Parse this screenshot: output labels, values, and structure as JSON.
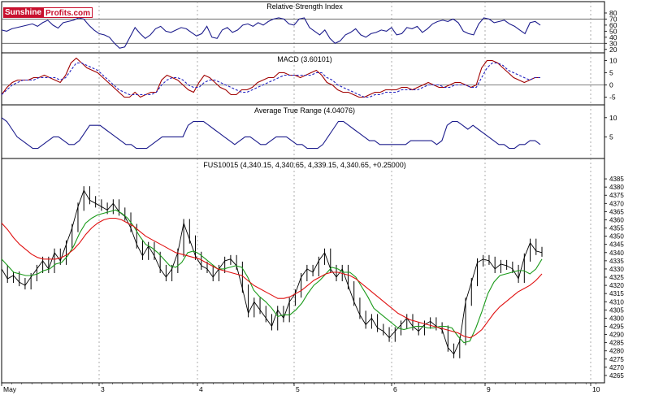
{
  "brand": {
    "part1": "Sunshine",
    "part2": "Profits.com"
  },
  "colors": {
    "price": "#000000",
    "ma_fast": "#1a9a1a",
    "ma_slow": "#e01010",
    "macd": "#a00000",
    "signal": "#2020c0",
    "rsi": "#1c1c8c",
    "atr": "#1c1c8c",
    "grid": "#9a9a9a",
    "axis": "#000000"
  },
  "chart_data": [
    {
      "type": "line",
      "title": "Relative Strength Index",
      "yticks": [
        80,
        70,
        60,
        50,
        40,
        30,
        20
      ],
      "ylim": [
        17,
        84
      ],
      "ref_lines": [
        70,
        30
      ],
      "series": [
        {
          "values": [
            52,
            50,
            54,
            56,
            58,
            60,
            62,
            58,
            64,
            68,
            60,
            55,
            64,
            66,
            68,
            72,
            70,
            60,
            52,
            46,
            44,
            40,
            30,
            22,
            24,
            40,
            56,
            46,
            38,
            44,
            54,
            58,
            50,
            48,
            52,
            56,
            54,
            48,
            42,
            46,
            58,
            40,
            38,
            52,
            56,
            48,
            52,
            60,
            62,
            58,
            64,
            60,
            66,
            70,
            72,
            70,
            62,
            60,
            70,
            72,
            56,
            50,
            44,
            52,
            38,
            30,
            34,
            44,
            48,
            54,
            44,
            40,
            46,
            48,
            52,
            50,
            56,
            44,
            46,
            56,
            54,
            58,
            48,
            54,
            62,
            66,
            68,
            66,
            70,
            64,
            50,
            46,
            44,
            62,
            72,
            70,
            64,
            66,
            68,
            62,
            58,
            52,
            46,
            64,
            66,
            60
          ]
        }
      ]
    },
    {
      "type": "line",
      "title": "MACD (3.60101)",
      "yticks": [
        10,
        5,
        0,
        -5
      ],
      "ylim": [
        -6.5,
        11.5
      ],
      "zero_line": 0,
      "series": [
        {
          "values": [
            -4,
            -1,
            1,
            2,
            2,
            2,
            3,
            3,
            4,
            3,
            2,
            1,
            4,
            9,
            11,
            9,
            7,
            6,
            5,
            3,
            1,
            -1,
            -3,
            -5,
            -5,
            -3,
            -5,
            -4,
            -3,
            -3,
            2,
            4,
            3,
            2,
            0,
            -2,
            -3,
            1,
            4,
            3,
            1,
            -1,
            -2,
            -4,
            -4,
            -2,
            -2,
            -1,
            1,
            2,
            3,
            3,
            5,
            5,
            4,
            4,
            3,
            4,
            5,
            6,
            4,
            1,
            0,
            -2,
            -3,
            -3,
            -4,
            -5,
            -5,
            -4,
            -3,
            -3,
            -2,
            -2,
            -2,
            -1,
            -1,
            -2,
            -1,
            0,
            1,
            0,
            -1,
            -1,
            0,
            1,
            1,
            0,
            -1,
            0,
            7,
            10,
            10,
            9,
            7,
            5,
            3,
            2,
            1,
            2,
            3,
            3
          ]
        },
        {
          "values": [
            -4,
            -2,
            0,
            1,
            2,
            2,
            2,
            3,
            3,
            3,
            3,
            2,
            3,
            6,
            9,
            9,
            8,
            7,
            6,
            4,
            2,
            0,
            -2,
            -3,
            -4,
            -4,
            -4,
            -4,
            -4,
            -3,
            0,
            2,
            3,
            3,
            2,
            0,
            -1,
            -1,
            1,
            2,
            2,
            1,
            0,
            -1,
            -2,
            -3,
            -3,
            -2,
            -1,
            0,
            1,
            2,
            3,
            4,
            4,
            4,
            4,
            4,
            4,
            5,
            5,
            3,
            2,
            0,
            -1,
            -2,
            -3,
            -4,
            -5,
            -5,
            -4,
            -4,
            -3,
            -3,
            -3,
            -2,
            -2,
            -2,
            -2,
            -1,
            0,
            0,
            0,
            -1,
            -1,
            0,
            0,
            0,
            -1,
            -1,
            3,
            7,
            9,
            9,
            8,
            6,
            5,
            4,
            3,
            2,
            3,
            3
          ]
        }
      ]
    },
    {
      "type": "line",
      "title": "Average True Range (4.04076)",
      "yticks": [
        10,
        5
      ],
      "ylim": [
        0,
        12.5
      ],
      "series": [
        {
          "values": [
            10,
            9,
            7,
            5,
            4,
            3,
            2,
            2,
            3,
            4,
            5,
            5,
            4,
            3,
            3,
            4,
            6,
            8,
            8,
            8,
            7,
            6,
            5,
            4,
            3,
            3,
            2,
            2,
            2,
            3,
            4,
            5,
            5,
            5,
            5,
            5,
            8,
            9,
            9,
            9,
            8,
            7,
            6,
            5,
            4,
            3,
            4,
            5,
            5,
            4,
            3,
            3,
            4,
            5,
            5,
            5,
            4,
            3,
            3,
            2,
            2,
            2,
            3,
            5,
            7,
            9,
            9,
            8,
            7,
            6,
            5,
            4,
            4,
            3,
            3,
            3,
            3,
            3,
            3,
            4,
            4,
            4,
            4,
            4,
            3,
            4,
            8,
            9,
            9,
            8,
            7,
            8,
            7,
            6,
            5,
            4,
            3,
            3,
            2,
            2,
            3,
            3,
            4,
            4,
            3
          ]
        }
      ]
    },
    {
      "type": "line",
      "title": "FUS10015 (4,340.15, 4,340.65, 4,339.15, 4,340.65, +0.25000)",
      "yticks": [
        4385,
        4380,
        4375,
        4370,
        4365,
        4360,
        4355,
        4350,
        4345,
        4340,
        4335,
        4330,
        4325,
        4320,
        4315,
        4310,
        4305,
        4300,
        4295,
        4290,
        4285,
        4280,
        4275,
        4270,
        4265
      ],
      "ylim": [
        4262,
        4390
      ],
      "xticks": [
        "May",
        "3",
        "4",
        "5",
        "6",
        "9",
        "10"
      ],
      "series": [
        {
          "values": [
            4330,
            4324,
            4326,
            4322,
            4320,
            4325,
            4330,
            4335,
            4330,
            4340,
            4335,
            4345,
            4355,
            4368,
            4378,
            4372,
            4370,
            4368,
            4366,
            4370,
            4365,
            4362,
            4355,
            4345,
            4338,
            4344,
            4338,
            4330,
            4325,
            4330,
            4340,
            4358,
            4348,
            4338,
            4332,
            4330,
            4325,
            4330,
            4335,
            4336,
            4332,
            4318,
            4303,
            4310,
            4305,
            4300,
            4295,
            4305,
            4300,
            4310,
            4315,
            4325,
            4330,
            4328,
            4335,
            4340,
            4330,
            4325,
            4330,
            4320,
            4310,
            4302,
            4296,
            4300,
            4294,
            4292,
            4288,
            4292,
            4296,
            4300,
            4295,
            4292,
            4296,
            4298,
            4295,
            4293,
            4282,
            4278,
            4286,
            4310,
            4322,
            4334,
            4336,
            4335,
            4330,
            4333,
            4332,
            4330,
            4324,
            4337,
            4346,
            4341,
            4340
          ]
        },
        {
          "values": [
            4336,
            4332,
            4328,
            4327,
            4326,
            4326,
            4327,
            4329,
            4330,
            4333,
            4334,
            4338,
            4344,
            4352,
            4358,
            4361,
            4363,
            4364,
            4365,
            4366,
            4364,
            4361,
            4356,
            4350,
            4345,
            4343,
            4340,
            4336,
            4332,
            4331,
            4334,
            4340,
            4341,
            4339,
            4336,
            4333,
            4330,
            4330,
            4331,
            4332,
            4331,
            4325,
            4317,
            4313,
            4310,
            4306,
            4301,
            4302,
            4302,
            4305,
            4309,
            4315,
            4320,
            4323,
            4327,
            4331,
            4330,
            4328,
            4328,
            4325,
            4319,
            4313,
            4306,
            4303,
            4300,
            4297,
            4294,
            4293,
            4294,
            4295,
            4295,
            4294,
            4294,
            4295,
            4295,
            4294,
            4289,
            4285,
            4286,
            4294,
            4304,
            4315,
            4322,
            4326,
            4327,
            4328,
            4329,
            4329,
            4327,
            4330,
            4336
          ]
        },
        {
          "values": [
            4358,
            4354,
            4349,
            4345,
            4342,
            4339,
            4337,
            4336,
            4336,
            4336,
            4337,
            4339,
            4342,
            4346,
            4351,
            4355,
            4358,
            4360,
            4361,
            4361,
            4360,
            4358,
            4356,
            4353,
            4350,
            4348,
            4346,
            4344,
            4342,
            4340,
            4339,
            4338,
            4337,
            4336,
            4334,
            4332,
            4330,
            4329,
            4328,
            4327,
            4326,
            4323,
            4320,
            4318,
            4316,
            4314,
            4312,
            4312,
            4313,
            4315,
            4317,
            4320,
            4323,
            4325,
            4327,
            4328,
            4328,
            4327,
            4326,
            4324,
            4321,
            4318,
            4315,
            4312,
            4309,
            4306,
            4303,
            4301,
            4299,
            4298,
            4297,
            4296,
            4295,
            4294,
            4293,
            4292,
            4291,
            4289,
            4288,
            4290,
            4293,
            4298,
            4303,
            4307,
            4310,
            4313,
            4316,
            4318,
            4320,
            4323,
            4327
          ]
        }
      ]
    }
  ]
}
